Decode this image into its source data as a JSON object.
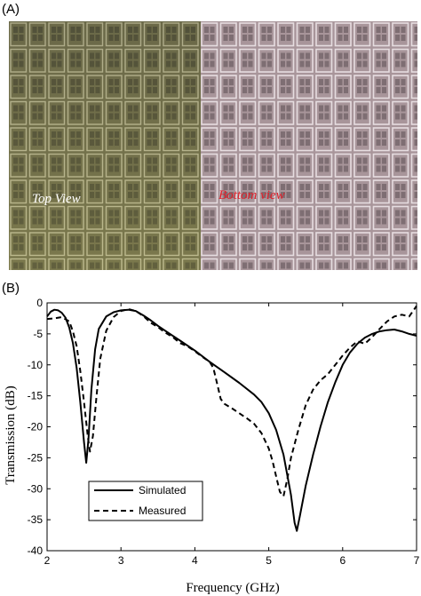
{
  "panel_a": {
    "label": "(A)",
    "top_view_caption": "Top View",
    "bottom_view_caption": "Bottom view",
    "colors": {
      "top_bg": "#6f6d4a",
      "top_line": "#c8c5a0",
      "top_cell": "#4e4d36",
      "bottom_bg": "#a8959a",
      "bottom_line": "#e6dde0",
      "bottom_cell": "#7e6e73",
      "bottom_caption": "#e0202a",
      "top_caption": "#ffffff"
    }
  },
  "panel_b": {
    "label": "(B)"
  },
  "chart_data": {
    "type": "line",
    "xlabel": "Frequency (GHz)",
    "ylabel": "Transmission (dB)",
    "xlim": [
      2,
      7
    ],
    "ylim": [
      -40,
      0
    ],
    "xticks": [
      "2",
      "3",
      "4",
      "5",
      "6",
      "7"
    ],
    "yticks": [
      "0",
      "-5",
      "-10",
      "-15",
      "-20",
      "-25",
      "-30",
      "-35",
      "-40"
    ],
    "grid": false,
    "legend_position": "bottom-left",
    "series": [
      {
        "name": "Simulated",
        "style": "solid",
        "points": [
          [
            2.0,
            -2.2
          ],
          [
            2.05,
            -1.4
          ],
          [
            2.1,
            -1.1
          ],
          [
            2.15,
            -1.2
          ],
          [
            2.2,
            -1.6
          ],
          [
            2.25,
            -2.4
          ],
          [
            2.3,
            -4.0
          ],
          [
            2.35,
            -6.5
          ],
          [
            2.4,
            -10.5
          ],
          [
            2.45,
            -16.0
          ],
          [
            2.5,
            -22.5
          ],
          [
            2.53,
            -25.8
          ],
          [
            2.56,
            -22.0
          ],
          [
            2.6,
            -14.0
          ],
          [
            2.65,
            -7.5
          ],
          [
            2.7,
            -4.2
          ],
          [
            2.8,
            -2.2
          ],
          [
            2.9,
            -1.5
          ],
          [
            3.0,
            -1.2
          ],
          [
            3.1,
            -1.1
          ],
          [
            3.2,
            -1.3
          ],
          [
            3.3,
            -2.0
          ],
          [
            3.4,
            -2.8
          ],
          [
            3.5,
            -3.7
          ],
          [
            3.6,
            -4.5
          ],
          [
            3.7,
            -5.3
          ],
          [
            3.8,
            -6.1
          ],
          [
            3.9,
            -6.9
          ],
          [
            4.0,
            -7.7
          ],
          [
            4.2,
            -9.5
          ],
          [
            4.4,
            -11.2
          ],
          [
            4.6,
            -12.9
          ],
          [
            4.8,
            -14.8
          ],
          [
            4.9,
            -16.0
          ],
          [
            5.0,
            -17.8
          ],
          [
            5.1,
            -20.5
          ],
          [
            5.2,
            -24.5
          ],
          [
            5.3,
            -31.0
          ],
          [
            5.35,
            -35.5
          ],
          [
            5.38,
            -36.8
          ],
          [
            5.42,
            -34.5
          ],
          [
            5.5,
            -29.5
          ],
          [
            5.6,
            -24.5
          ],
          [
            5.7,
            -20.0
          ],
          [
            5.8,
            -16.0
          ],
          [
            5.9,
            -12.8
          ],
          [
            6.0,
            -10.0
          ],
          [
            6.1,
            -8.0
          ],
          [
            6.2,
            -6.6
          ],
          [
            6.3,
            -5.6
          ],
          [
            6.4,
            -5.0
          ],
          [
            6.5,
            -4.6
          ],
          [
            6.6,
            -4.4
          ],
          [
            6.7,
            -4.3
          ],
          [
            6.8,
            -4.6
          ],
          [
            6.9,
            -5.0
          ],
          [
            7.0,
            -5.3
          ]
        ]
      },
      {
        "name": "Measured",
        "style": "dashed",
        "points": [
          [
            2.0,
            -2.6
          ],
          [
            2.1,
            -2.5
          ],
          [
            2.2,
            -2.3
          ],
          [
            2.3,
            -3.0
          ],
          [
            2.35,
            -4.6
          ],
          [
            2.4,
            -7.0
          ],
          [
            2.45,
            -11.0
          ],
          [
            2.5,
            -16.0
          ],
          [
            2.55,
            -21.5
          ],
          [
            2.58,
            -24.0
          ],
          [
            2.62,
            -21.5
          ],
          [
            2.67,
            -15.0
          ],
          [
            2.72,
            -9.0
          ],
          [
            2.8,
            -4.5
          ],
          [
            2.9,
            -2.3
          ],
          [
            3.0,
            -1.3
          ],
          [
            3.1,
            -1.0
          ],
          [
            3.2,
            -1.3
          ],
          [
            3.3,
            -2.1
          ],
          [
            3.4,
            -3.2
          ],
          [
            3.5,
            -3.9
          ],
          [
            3.6,
            -4.8
          ],
          [
            3.7,
            -5.5
          ],
          [
            3.8,
            -6.5
          ],
          [
            3.9,
            -7.0
          ],
          [
            4.0,
            -7.8
          ],
          [
            4.1,
            -8.7
          ],
          [
            4.2,
            -9.5
          ],
          [
            4.25,
            -10.5
          ],
          [
            4.3,
            -13.0
          ],
          [
            4.35,
            -15.5
          ],
          [
            4.4,
            -16.3
          ],
          [
            4.5,
            -17.0
          ],
          [
            4.6,
            -17.8
          ],
          [
            4.7,
            -18.6
          ],
          [
            4.8,
            -19.5
          ],
          [
            4.9,
            -21.0
          ],
          [
            5.0,
            -23.5
          ],
          [
            5.05,
            -25.5
          ],
          [
            5.1,
            -28.0
          ],
          [
            5.15,
            -30.5
          ],
          [
            5.2,
            -31.2
          ],
          [
            5.25,
            -28.5
          ],
          [
            5.3,
            -25.0
          ],
          [
            5.4,
            -20.5
          ],
          [
            5.5,
            -16.5
          ],
          [
            5.6,
            -14.0
          ],
          [
            5.7,
            -12.5
          ],
          [
            5.8,
            -11.5
          ],
          [
            5.9,
            -10.0
          ],
          [
            6.0,
            -8.5
          ],
          [
            6.1,
            -7.2
          ],
          [
            6.2,
            -6.2
          ],
          [
            6.3,
            -6.6
          ],
          [
            6.4,
            -5.5
          ],
          [
            6.5,
            -4.2
          ],
          [
            6.6,
            -3.0
          ],
          [
            6.7,
            -2.2
          ],
          [
            6.8,
            -1.9
          ],
          [
            6.9,
            -2.2
          ],
          [
            7.0,
            -0.5
          ]
        ]
      }
    ]
  }
}
